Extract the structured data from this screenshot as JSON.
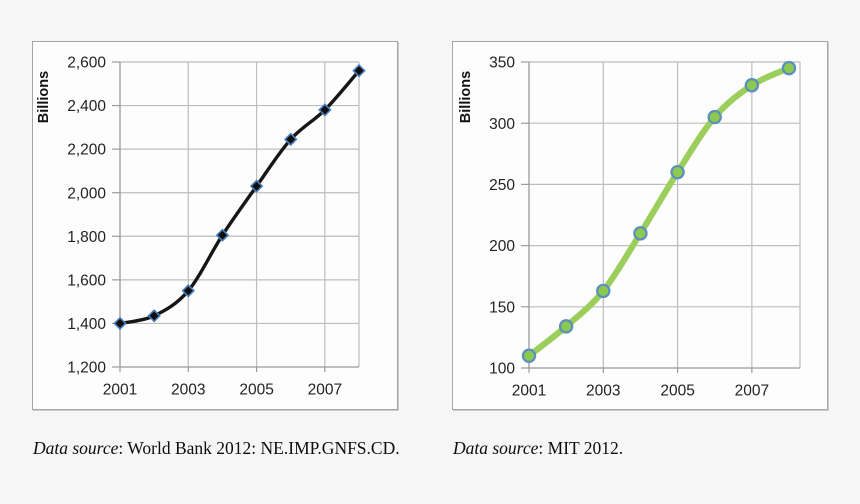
{
  "charts": [
    {
      "ylabel": "Billions",
      "caption": {
        "source_label": "Data source",
        "source_text": ": World Bank 2012: NE.IMP.GNFS.CD."
      }
    },
    {
      "ylabel": "Billions",
      "caption": {
        "source_label": "Data source",
        "source_text": ": MIT 2012."
      }
    }
  ],
  "chart_data": [
    {
      "type": "line",
      "title": "",
      "ylabel": "Billions",
      "x": [
        2001,
        2002,
        2003,
        2004,
        2005,
        2006,
        2007,
        2008
      ],
      "values": [
        1400,
        1435,
        1550,
        1805,
        2030,
        2245,
        2380,
        2560
      ],
      "xlim": [
        2001,
        2008
      ],
      "ylim": [
        1200,
        2600
      ],
      "yticks": [
        1200,
        1400,
        1600,
        1800,
        2000,
        2200,
        2400,
        2600
      ],
      "yticklabels": [
        "1,200",
        "1,400",
        "1,600",
        "1,800",
        "2,000",
        "2,200",
        "2,400",
        "2,600"
      ],
      "xticks": [
        2001,
        2003,
        2005,
        2007
      ],
      "xticklabels": [
        "2001",
        "2003",
        "2005",
        "2007"
      ],
      "grid_x": [
        2003,
        2005,
        2007
      ],
      "grid": true,
      "legend": "none",
      "smooth": true,
      "line_color": "#161616",
      "line_width": 3.4,
      "marker": {
        "shape": "diamond",
        "fill": "#0f0f0f",
        "stroke": "#4a7ebb",
        "size": 5.6
      }
    },
    {
      "type": "line",
      "title": "",
      "ylabel": "Billions",
      "x": [
        2001,
        2002,
        2003,
        2004,
        2005,
        2006,
        2007,
        2008
      ],
      "values": [
        110,
        134,
        163,
        210,
        260,
        305,
        331,
        345
      ],
      "xlim": [
        2001,
        2008
      ],
      "ylim": [
        100,
        350
      ],
      "yticks": [
        100,
        150,
        200,
        250,
        300,
        350
      ],
      "yticklabels": [
        "100",
        "150",
        "200",
        "250",
        "300",
        "350"
      ],
      "xticks": [
        2001,
        2003,
        2005,
        2007
      ],
      "xticklabels": [
        "2001",
        "2003",
        "2005",
        "2007"
      ],
      "grid_x": [
        2003,
        2005,
        2007
      ],
      "grid": true,
      "legend": "none",
      "smooth": true,
      "line_color": "#9bce5b",
      "line_width": 6.2,
      "marker": {
        "shape": "circle",
        "fill": "#8dc94e",
        "stroke": "#5b8fbe",
        "size": 6.1
      }
    }
  ]
}
